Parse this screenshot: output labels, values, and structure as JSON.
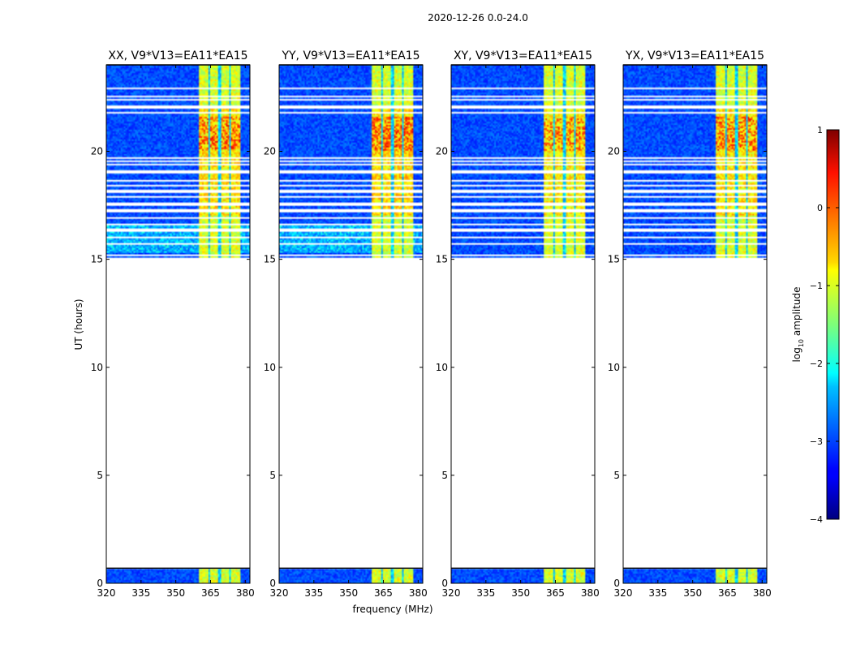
{
  "chart_data": {
    "type": "heatmap",
    "suptitle": "2020-12-26 0.0-24.0",
    "xlabel": "frequency (MHz)",
    "ylabel": "UT (hours)",
    "xlim": [
      320,
      382
    ],
    "ylim": [
      0,
      24
    ],
    "xticks": [
      320,
      335,
      350,
      365,
      380
    ],
    "yticks": [
      0,
      5,
      10,
      15,
      20
    ],
    "panels": [
      {
        "title": "XX, V9*V13=EA11*EA15",
        "intensity": 0.85
      },
      {
        "title": "YY, V9*V13=EA11*EA15",
        "intensity": 1.0
      },
      {
        "title": "XY, V9*V13=EA11*EA15",
        "intensity": 0.7
      },
      {
        "title": "YX, V9*V13=EA11*EA15",
        "intensity": 0.8
      }
    ],
    "data_time_ranges_hours": [
      [
        0.0,
        0.7
      ],
      [
        15.1,
        24.0
      ]
    ],
    "active_band_mhz": [
      360,
      378
    ],
    "band_sub_channels_mhz": [
      [
        360,
        364
      ],
      [
        365,
        368.5
      ],
      [
        369.5,
        373
      ],
      [
        374,
        378
      ]
    ],
    "flagged_rows_hours": [
      15.18,
      15.7,
      16.0,
      16.35,
      16.6,
      16.9,
      17.25,
      17.55,
      17.9,
      18.15,
      18.4,
      18.65,
      19.05,
      19.4,
      19.55,
      19.7,
      21.8,
      22.05,
      22.4,
      22.55,
      22.9
    ],
    "colorbar": {
      "label": "log10 amplitude",
      "label_main": "log",
      "label_sub": "10",
      "label_suffix": " amplitude",
      "range": [
        -4,
        1
      ],
      "ticks": [
        "1",
        "0",
        "−1",
        "−2",
        "−3",
        "−4"
      ],
      "tick_values": [
        1,
        0,
        -1,
        -2,
        -3,
        -4
      ],
      "colormap": "jet"
    }
  }
}
